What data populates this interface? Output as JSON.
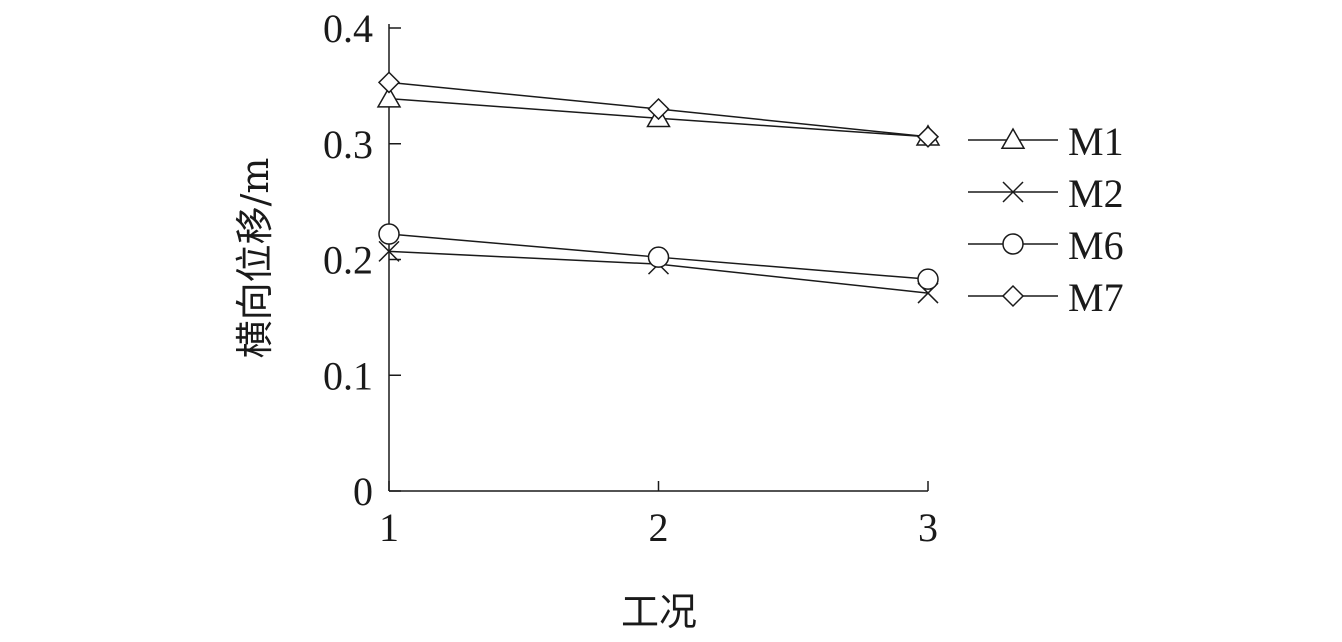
{
  "chart_data": {
    "type": "line",
    "title": "",
    "xlabel": "工况",
    "ylabel": "横向位移/m",
    "x": [
      1,
      2,
      3
    ],
    "xticks": [
      "1",
      "2",
      "3"
    ],
    "yticks": [
      "0",
      "0.1",
      "0.2",
      "0.3",
      "0.4"
    ],
    "ylim": [
      0,
      0.4
    ],
    "grid": false,
    "legend_position": "right",
    "series": [
      {
        "name": "M1",
        "marker": "triangle",
        "values": [
          0.339,
          0.322,
          0.306
        ]
      },
      {
        "name": "M2",
        "marker": "cross",
        "values": [
          0.207,
          0.196,
          0.171
        ]
      },
      {
        "name": "M6",
        "marker": "circle",
        "values": [
          0.222,
          0.202,
          0.183
        ]
      },
      {
        "name": "M7",
        "marker": "diamond",
        "values": [
          0.353,
          0.33,
          0.306
        ]
      }
    ]
  }
}
